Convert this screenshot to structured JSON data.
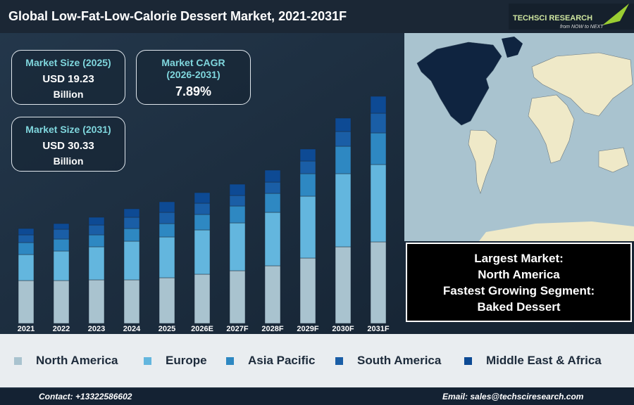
{
  "header": {
    "title": "Global Low-Fat-Low-Calorie Dessert Market, 2021-2031F",
    "logo": "TECHSCI RESEARCH",
    "tagline": "from NOW to NEXT"
  },
  "stats": [
    {
      "label": [
        "Market Size (2025)"
      ],
      "value": "USD 19.23",
      "unit": "Billion"
    },
    {
      "label": [
        "Market CAGR",
        "(2026-2031)"
      ],
      "value": "7.89%"
    },
    {
      "label": [
        "Market Size (2031)"
      ],
      "value": "USD 30.33",
      "unit": "Billion"
    }
  ],
  "highlights": [
    "Largest Market:",
    "North America",
    "Fastest Growing Segment:",
    "Baked Dessert"
  ],
  "chart_data": {
    "type": "bar",
    "stacked": true,
    "categories": [
      "2021",
      "2022",
      "2023",
      "2024",
      "2025",
      "2026E",
      "2027F",
      "2028F",
      "2029F",
      "2030F",
      "2031F"
    ],
    "series": [
      {
        "name": "North America",
        "color": "#a9c3cf",
        "values": [
          61,
          61,
          62,
          62,
          65,
          70,
          75,
          82,
          93,
          109,
          116
        ]
      },
      {
        "name": "Europe",
        "color": "#63b6de",
        "values": [
          37,
          42,
          47,
          55,
          58,
          63,
          68,
          76,
          88,
          104,
          110
        ]
      },
      {
        "name": "Asia Pacific",
        "color": "#2e88c2",
        "values": [
          17,
          17,
          17,
          18,
          19,
          22,
          24,
          27,
          32,
          39,
          45
        ]
      },
      {
        "name": "South America",
        "color": "#1a5ea6",
        "values": [
          11,
          14,
          14,
          16,
          16,
          16,
          15,
          16,
          18,
          21,
          28
        ]
      },
      {
        "name": "Middle East & Africa",
        "color": "#0d4a94",
        "values": [
          9,
          8,
          11,
          12,
          15,
          15,
          16,
          17,
          17,
          19,
          24
        ]
      }
    ]
  },
  "footer": {
    "contact": "Contact: +13322586602",
    "email": "Email: sales@techsciresearch.com"
  }
}
